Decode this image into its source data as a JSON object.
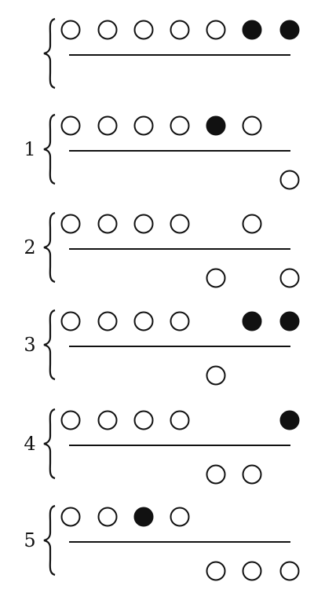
{
  "diagram": {
    "rows": [
      {
        "label": "",
        "upper": [
          "open",
          "open",
          "open",
          "open",
          "open",
          "filled",
          "filled"
        ],
        "lower": [
          "none",
          "none",
          "none",
          "none",
          "none",
          "none",
          "none"
        ]
      },
      {
        "label": "1",
        "upper": [
          "open",
          "open",
          "open",
          "open",
          "filled",
          "open",
          "none"
        ],
        "lower": [
          "none",
          "none",
          "none",
          "none",
          "none",
          "none",
          "open"
        ]
      },
      {
        "label": "2",
        "upper": [
          "open",
          "open",
          "open",
          "open",
          "none",
          "open",
          "none"
        ],
        "lower": [
          "none",
          "none",
          "none",
          "none",
          "open",
          "none",
          "open"
        ]
      },
      {
        "label": "3",
        "upper": [
          "open",
          "open",
          "open",
          "open",
          "none",
          "filled",
          "filled"
        ],
        "lower": [
          "none",
          "none",
          "none",
          "none",
          "open",
          "none",
          "none"
        ]
      },
      {
        "label": "4",
        "upper": [
          "open",
          "open",
          "open",
          "open",
          "none",
          "none",
          "filled"
        ],
        "lower": [
          "none",
          "none",
          "none",
          "none",
          "open",
          "open",
          "none"
        ]
      },
      {
        "label": "5",
        "upper": [
          "open",
          "open",
          "filled",
          "open",
          "none",
          "none",
          "none"
        ],
        "lower": [
          "none",
          "none",
          "none",
          "none",
          "open",
          "open",
          "open"
        ]
      }
    ],
    "colors": {
      "ink": "#111111",
      "paper": "#ffffff"
    }
  }
}
